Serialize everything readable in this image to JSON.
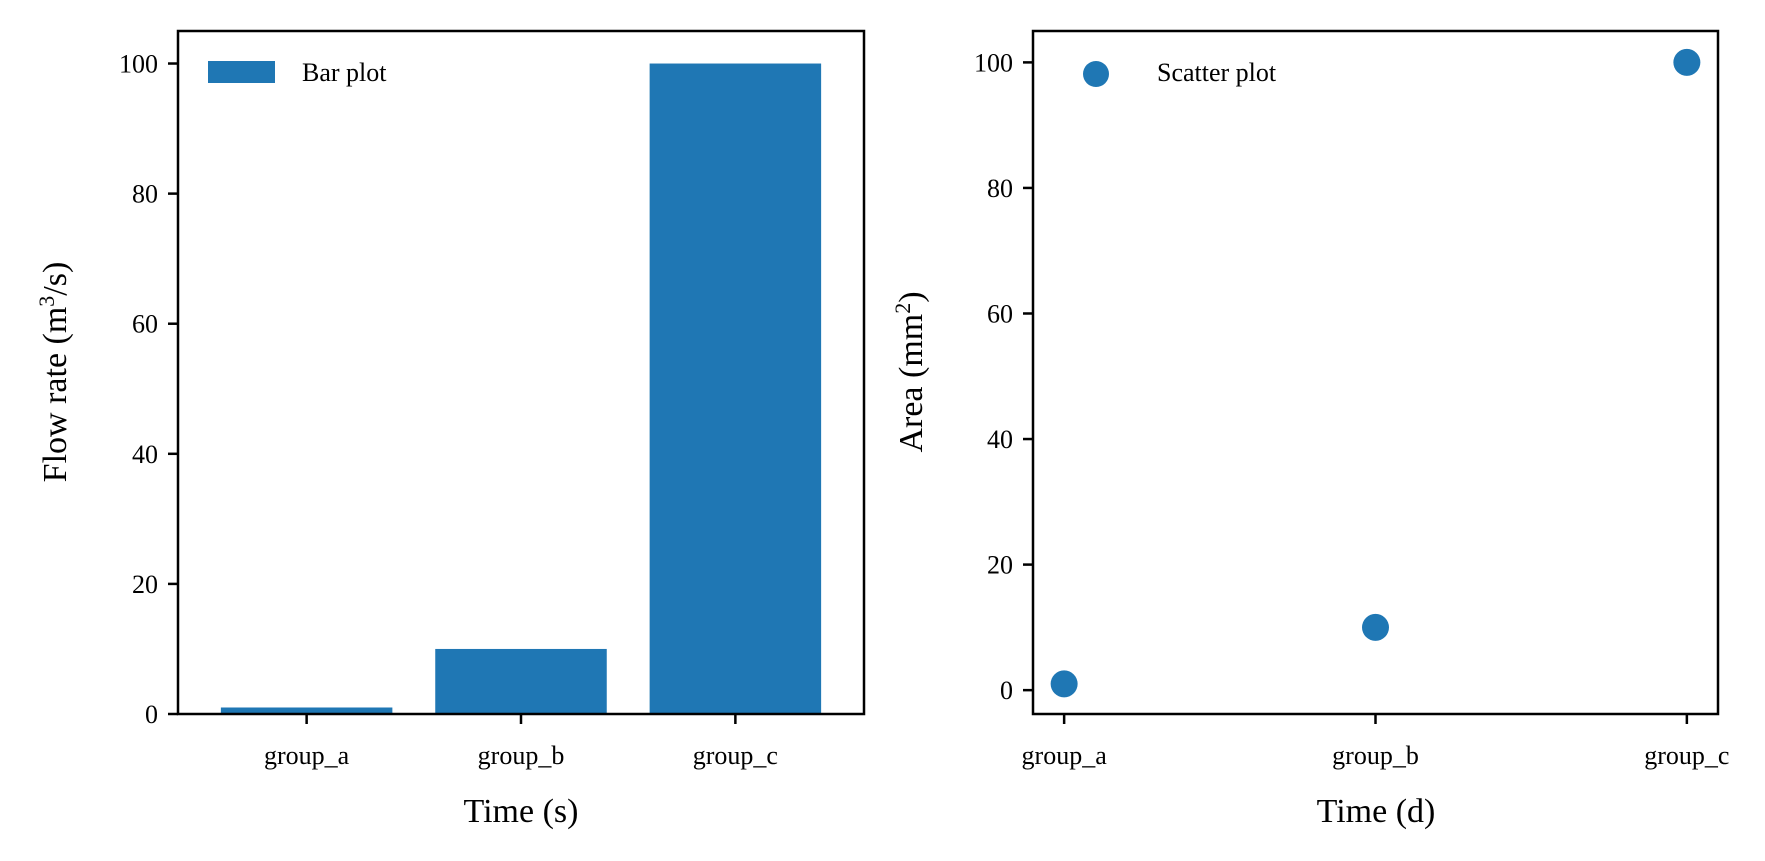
{
  "colors": {
    "series": "#1f77b4",
    "axes": "#000000",
    "background": "#ffffff"
  },
  "chart_data": [
    {
      "type": "bar",
      "categories": [
        "group_a",
        "group_b",
        "group_c"
      ],
      "series": [
        {
          "name": "Bar plot",
          "values": [
            1,
            10,
            100
          ]
        }
      ],
      "xlabel": "Time (s)",
      "ylabel": {
        "prefix": "Flow rate (m",
        "sup": "3",
        "suffix": "/s)"
      },
      "ylim": [
        0,
        105
      ],
      "yticks": [
        0,
        20,
        40,
        60,
        80,
        100
      ],
      "grid": false,
      "legend": "top-left"
    },
    {
      "type": "scatter",
      "categories": [
        "group_a",
        "group_b",
        "group_c"
      ],
      "series": [
        {
          "name": "Scatter plot",
          "values": [
            1,
            10,
            100
          ]
        }
      ],
      "xlabel": "Time (d)",
      "ylabel": {
        "prefix": "Area (mm",
        "sup": "2",
        "suffix": ")"
      },
      "ylim": [
        -3.8,
        105
      ],
      "yticks": [
        0,
        20,
        40,
        60,
        80,
        100
      ],
      "grid": false,
      "legend": "top-left"
    }
  ]
}
